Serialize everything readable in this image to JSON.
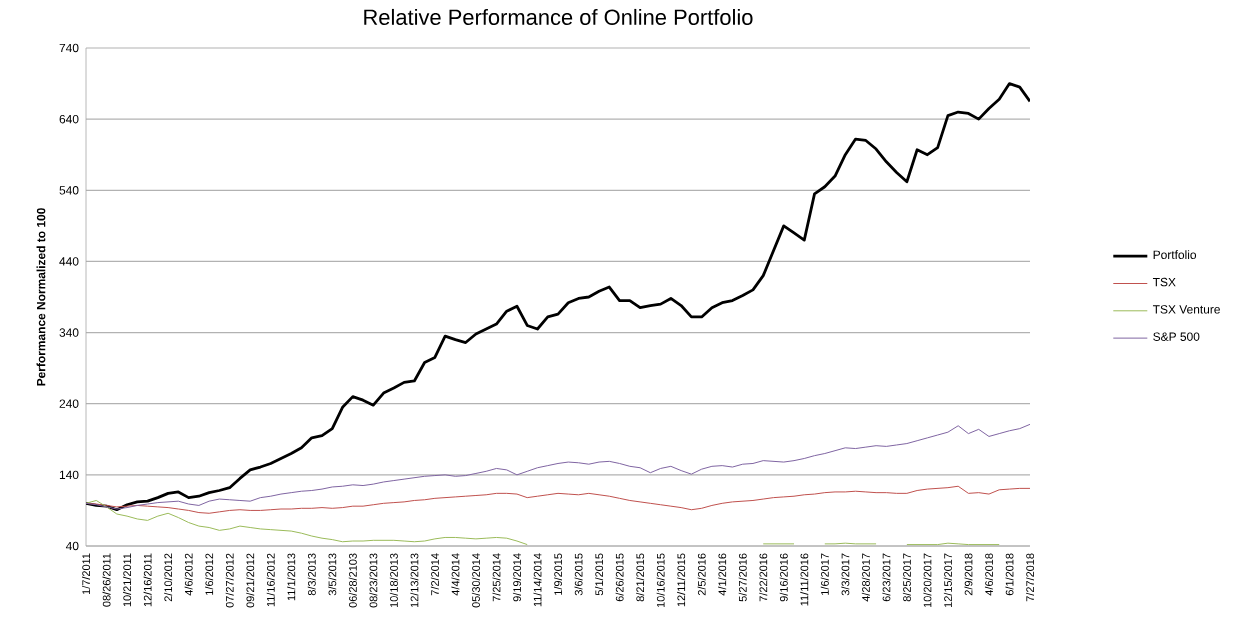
{
  "chart_data": {
    "type": "line",
    "title": "Relative Performance of Online Portfolio",
    "ylabel": "Performance Normalized to 100",
    "categories": [
      "1/7/2011",
      null,
      "08/26/2011",
      null,
      "10/21/2011",
      null,
      "12/16/2011",
      null,
      "2/10/2012",
      null,
      "4/6/2012",
      null,
      "1/6/2012",
      null,
      "07/27/2012",
      null,
      "09/21/2012",
      null,
      "11/16/2012",
      null,
      "11/1/2013",
      null,
      "8/3/2013",
      null,
      "3/5/2013",
      null,
      "06/28/2103",
      null,
      "08/23/2013",
      null,
      "10/18/2013",
      null,
      "12/13/2013",
      null,
      "7/2/2014",
      null,
      "4/4/2014",
      null,
      "05/30/2014",
      null,
      "7/25/2014",
      null,
      "9/19/2014",
      null,
      "11/14/2014",
      null,
      "1/9/2015",
      null,
      "3/6/2015",
      null,
      "5/1/2015",
      null,
      "6/26/2015",
      null,
      "8/21/2015",
      null,
      "10/16/2015",
      null,
      "12/11/2015",
      null,
      "2/5/2016",
      null,
      "4/1/2016",
      null,
      "5/27/2016",
      null,
      "7/22/2016",
      null,
      "9/16/2016",
      null,
      "11/11/2016",
      null,
      "1/6/2017",
      null,
      "3/3/2017",
      null,
      "4/28/2017",
      null,
      "6/23/2017",
      null,
      "8/25/2017",
      null,
      "10/20/2017",
      null,
      "12/15/2017",
      null,
      "2/9/2018",
      null,
      "4/6/2018",
      null,
      "6/1/2018",
      null,
      "7/27/2018"
    ],
    "series": [
      {
        "name": "Portfolio",
        "color": "#000000",
        "values": [
          100,
          97,
          96,
          91,
          98,
          102,
          103,
          108,
          114,
          116,
          108,
          110,
          115,
          118,
          122,
          135,
          147,
          151,
          156,
          163,
          170,
          178,
          192,
          195,
          205,
          235,
          250,
          245,
          238,
          255,
          262,
          270,
          272,
          298,
          305,
          335,
          330,
          326,
          338,
          345,
          352,
          370,
          377,
          350,
          345,
          362,
          366,
          382,
          388,
          390,
          398,
          404,
          385,
          385,
          375,
          378,
          380,
          388,
          378,
          362,
          362,
          375,
          382,
          385,
          392,
          400,
          420,
          455,
          490,
          480,
          470,
          535,
          545,
          560,
          590,
          612,
          610,
          598,
          580,
          565,
          552,
          597,
          590,
          600,
          645,
          650,
          648,
          640,
          655,
          668,
          690,
          685,
          665
        ]
      },
      {
        "name": "TSX",
        "color": "#c0504d",
        "values": [
          100,
          99,
          97,
          95,
          96,
          97,
          96,
          95,
          94,
          92,
          90,
          87,
          86,
          88,
          90,
          91,
          90,
          90,
          91,
          92,
          92,
          93,
          93,
          94,
          93,
          94,
          96,
          96,
          98,
          100,
          101,
          102,
          104,
          105,
          107,
          108,
          109,
          110,
          111,
          112,
          114,
          114,
          113,
          108,
          110,
          112,
          114,
          113,
          112,
          114,
          112,
          110,
          107,
          104,
          102,
          100,
          98,
          96,
          94,
          91,
          93,
          97,
          100,
          102,
          103,
          104,
          106,
          108,
          109,
          110,
          112,
          113,
          115,
          116,
          116,
          117,
          116,
          115,
          115,
          114,
          114,
          118,
          120,
          121,
          122,
          124,
          114,
          115,
          113,
          119,
          120,
          121,
          121
        ]
      },
      {
        "name": "TSX Venture",
        "color": "#9bbb59",
        "values": [
          100,
          104,
          95,
          85,
          82,
          78,
          76,
          82,
          86,
          80,
          73,
          68,
          66,
          62,
          64,
          68,
          66,
          64,
          63,
          62,
          61,
          58,
          54,
          51,
          49,
          46,
          47,
          47,
          48,
          48,
          48,
          47,
          46,
          47,
          50,
          52,
          52,
          51,
          50,
          51,
          52,
          51,
          47,
          42,
          null,
          null,
          null,
          null,
          null,
          null,
          null,
          null,
          null,
          null,
          null,
          null,
          null,
          null,
          null,
          null,
          null,
          null,
          null,
          null,
          null,
          null,
          43,
          43,
          43,
          43,
          null,
          null,
          43,
          43,
          44,
          43,
          43,
          43,
          null,
          null,
          42,
          42,
          42,
          42,
          44,
          43,
          42,
          42,
          42,
          42,
          null,
          null,
          null
        ]
      },
      {
        "name": "S&P 500",
        "color": "#8064a2",
        "values": [
          100,
          98,
          95,
          92,
          94,
          97,
          99,
          101,
          102,
          103,
          99,
          97,
          103,
          106,
          105,
          104,
          103,
          108,
          110,
          113,
          115,
          117,
          118,
          120,
          123,
          124,
          126,
          125,
          127,
          130,
          132,
          134,
          136,
          138,
          139,
          140,
          138,
          139,
          142,
          145,
          149,
          147,
          140,
          145,
          150,
          153,
          156,
          158,
          157,
          155,
          158,
          159,
          156,
          152,
          150,
          143,
          149,
          152,
          146,
          141,
          148,
          152,
          153,
          151,
          155,
          156,
          160,
          159,
          158,
          160,
          163,
          167,
          170,
          174,
          178,
          177,
          179,
          181,
          180,
          182,
          184,
          188,
          192,
          196,
          200,
          209,
          198,
          204,
          194,
          198,
          202,
          205,
          211
        ]
      }
    ],
    "ylim": [
      40,
      740
    ],
    "yticks": [
      40,
      140,
      240,
      340,
      440,
      540,
      640,
      740
    ],
    "grid": "y",
    "legend": "right",
    "marker": "none",
    "line_style": "solid"
  }
}
